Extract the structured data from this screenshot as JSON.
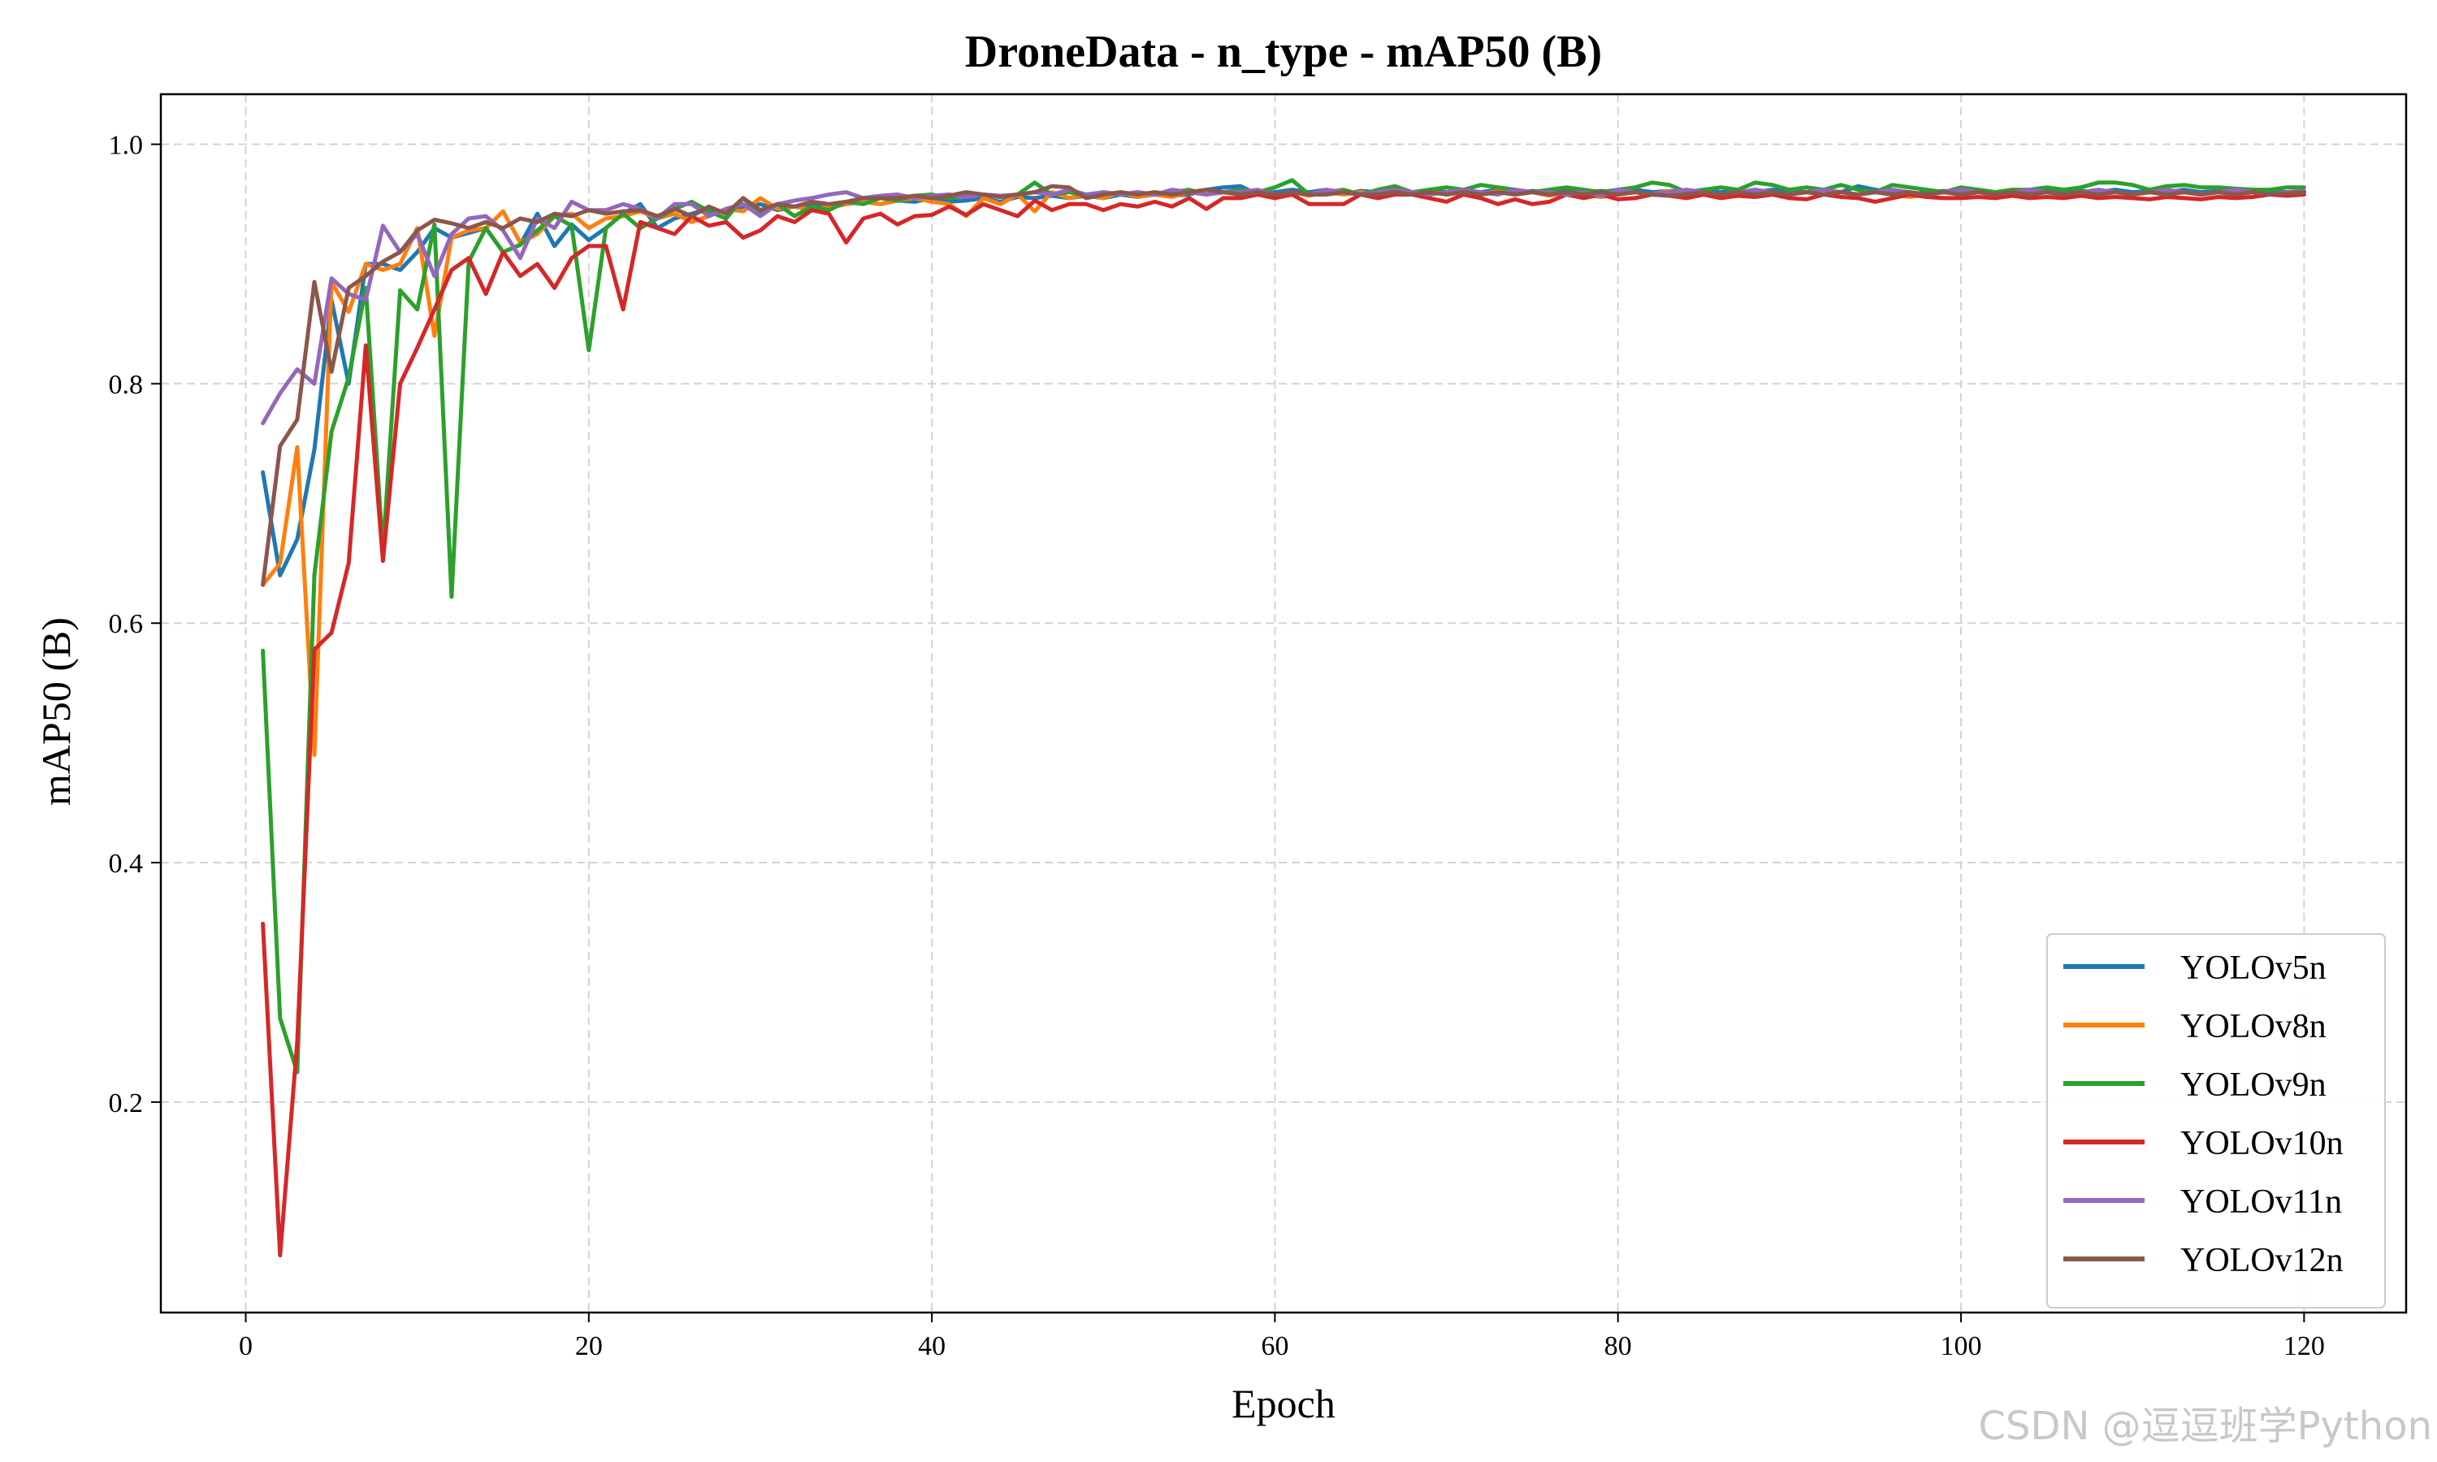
{
  "watermark": "CSDN @逗逗班学Python",
  "chart_data": {
    "type": "line",
    "title": "DroneData - n_type - mAP50 (B)",
    "xlabel": "Epoch",
    "ylabel": "mAP50 (B)",
    "xlim": [
      -4.95,
      125.95
    ],
    "ylim": [
      0.0242,
      1.0418
    ],
    "xticks": [
      0,
      20,
      40,
      60,
      80,
      100,
      120
    ],
    "yticks": [
      0.2,
      0.4,
      0.6,
      0.8,
      1.0
    ],
    "xtick_labels": [
      "0",
      "20",
      "40",
      "60",
      "80",
      "100",
      "120"
    ],
    "ytick_labels": [
      "0.2",
      "0.4",
      "0.6",
      "0.8",
      "1.0"
    ],
    "grid": true,
    "legend_position": "bottom-right",
    "series": [
      {
        "name": "YOLOv5n",
        "color": "#1f77b4",
        "values": [
          0.726,
          0.64,
          0.67,
          0.745,
          0.87,
          0.8,
          0.9,
          0.9,
          0.895,
          0.91,
          0.93,
          0.922,
          0.926,
          0.93,
          0.91,
          0.916,
          0.942,
          0.915,
          0.933,
          0.92,
          0.93,
          0.942,
          0.95,
          0.93,
          0.938,
          0.942,
          0.946,
          0.943,
          0.948,
          0.95,
          0.945,
          0.948,
          0.95,
          0.947,
          0.95,
          0.952,
          0.95,
          0.953,
          0.952,
          0.955,
          0.952,
          0.953,
          0.955,
          0.952,
          0.956,
          0.955,
          0.957,
          0.955,
          0.957,
          0.955,
          0.958,
          0.956,
          0.958,
          0.957,
          0.958,
          0.962,
          0.964,
          0.965,
          0.958,
          0.96,
          0.962,
          0.96,
          0.962,
          0.958,
          0.961,
          0.96,
          0.962,
          0.958,
          0.962,
          0.96,
          0.961,
          0.96,
          0.962,
          0.959,
          0.961,
          0.96,
          0.962,
          0.96,
          0.961,
          0.96,
          0.962,
          0.96,
          0.961,
          0.96,
          0.962,
          0.96,
          0.961,
          0.96,
          0.962,
          0.961,
          0.96,
          0.962,
          0.96,
          0.965,
          0.962,
          0.96,
          0.958,
          0.96,
          0.961,
          0.96,
          0.962,
          0.96,
          0.961,
          0.96,
          0.962,
          0.96,
          0.961,
          0.96,
          0.962,
          0.96,
          0.961,
          0.96,
          0.962,
          0.96,
          0.961,
          0.96,
          0.962,
          0.961,
          0.96,
          0.96
        ]
      },
      {
        "name": "YOLOv8n",
        "color": "#ff7f0e",
        "values": [
          0.632,
          0.65,
          0.747,
          0.49,
          0.885,
          0.86,
          0.9,
          0.895,
          0.9,
          0.93,
          0.84,
          0.922,
          0.928,
          0.93,
          0.944,
          0.918,
          0.925,
          0.94,
          0.942,
          0.93,
          0.938,
          0.94,
          0.944,
          0.938,
          0.942,
          0.935,
          0.94,
          0.946,
          0.944,
          0.955,
          0.946,
          0.948,
          0.945,
          0.948,
          0.95,
          0.952,
          0.95,
          0.953,
          0.955,
          0.952,
          0.95,
          0.94,
          0.955,
          0.95,
          0.958,
          0.944,
          0.96,
          0.955,
          0.958,
          0.955,
          0.96,
          0.956,
          0.958,
          0.956,
          0.96,
          0.958,
          0.96,
          0.958,
          0.96,
          0.958,
          0.96,
          0.957,
          0.96,
          0.958,
          0.96,
          0.958,
          0.96,
          0.958,
          0.961,
          0.958,
          0.96,
          0.958,
          0.961,
          0.958,
          0.96,
          0.957,
          0.96,
          0.958,
          0.956,
          0.958,
          0.96,
          0.958,
          0.961,
          0.958,
          0.96,
          0.958,
          0.96,
          0.958,
          0.96,
          0.958,
          0.96,
          0.958,
          0.96,
          0.958,
          0.96,
          0.958,
          0.956,
          0.958,
          0.96,
          0.958,
          0.96,
          0.958,
          0.96,
          0.958,
          0.96,
          0.958,
          0.96,
          0.958,
          0.96,
          0.958,
          0.96,
          0.958,
          0.96,
          0.958,
          0.96,
          0.958,
          0.96,
          0.958,
          0.96,
          0.96
        ]
      },
      {
        "name": "YOLOv9n",
        "color": "#2ca02c",
        "values": [
          0.577,
          0.27,
          0.225,
          0.64,
          0.76,
          0.805,
          0.88,
          0.66,
          0.878,
          0.862,
          0.933,
          0.622,
          0.902,
          0.93,
          0.91,
          0.916,
          0.928,
          0.94,
          0.932,
          0.828,
          0.93,
          0.942,
          0.93,
          0.938,
          0.946,
          0.952,
          0.944,
          0.938,
          0.955,
          0.942,
          0.95,
          0.94,
          0.948,
          0.945,
          0.952,
          0.95,
          0.955,
          0.953,
          0.957,
          0.958,
          0.955,
          0.957,
          0.958,
          0.956,
          0.958,
          0.968,
          0.958,
          0.96,
          0.957,
          0.96,
          0.958,
          0.96,
          0.958,
          0.96,
          0.962,
          0.958,
          0.96,
          0.962,
          0.96,
          0.964,
          0.97,
          0.958,
          0.96,
          0.962,
          0.958,
          0.962,
          0.965,
          0.96,
          0.962,
          0.964,
          0.962,
          0.966,
          0.964,
          0.962,
          0.96,
          0.962,
          0.964,
          0.962,
          0.96,
          0.962,
          0.964,
          0.968,
          0.966,
          0.96,
          0.962,
          0.964,
          0.962,
          0.968,
          0.966,
          0.962,
          0.964,
          0.962,
          0.966,
          0.962,
          0.96,
          0.966,
          0.964,
          0.962,
          0.96,
          0.964,
          0.962,
          0.96,
          0.962,
          0.962,
          0.964,
          0.962,
          0.964,
          0.968,
          0.968,
          0.966,
          0.962,
          0.965,
          0.966,
          0.964,
          0.964,
          0.963,
          0.962,
          0.962,
          0.964,
          0.964
        ]
      },
      {
        "name": "YOLOv10n",
        "color": "#d62728",
        "values": [
          0.349,
          0.072,
          0.25,
          0.578,
          0.592,
          0.65,
          0.832,
          0.652,
          0.8,
          0.83,
          0.862,
          0.895,
          0.905,
          0.875,
          0.91,
          0.89,
          0.9,
          0.88,
          0.905,
          0.915,
          0.915,
          0.862,
          0.935,
          0.93,
          0.925,
          0.94,
          0.932,
          0.935,
          0.922,
          0.928,
          0.94,
          0.935,
          0.945,
          0.942,
          0.918,
          0.938,
          0.942,
          0.933,
          0.94,
          0.941,
          0.948,
          0.941,
          0.95,
          0.945,
          0.94,
          0.953,
          0.945,
          0.95,
          0.95,
          0.945,
          0.95,
          0.948,
          0.952,
          0.948,
          0.955,
          0.946,
          0.955,
          0.955,
          0.958,
          0.955,
          0.958,
          0.95,
          0.95,
          0.95,
          0.958,
          0.955,
          0.958,
          0.958,
          0.955,
          0.952,
          0.958,
          0.955,
          0.95,
          0.954,
          0.95,
          0.952,
          0.958,
          0.955,
          0.958,
          0.954,
          0.955,
          0.958,
          0.957,
          0.955,
          0.958,
          0.955,
          0.957,
          0.956,
          0.958,
          0.955,
          0.954,
          0.958,
          0.956,
          0.955,
          0.952,
          0.955,
          0.958,
          0.956,
          0.955,
          0.955,
          0.956,
          0.955,
          0.957,
          0.955,
          0.956,
          0.955,
          0.957,
          0.955,
          0.956,
          0.955,
          0.954,
          0.956,
          0.955,
          0.954,
          0.956,
          0.955,
          0.956,
          0.958,
          0.957,
          0.958
        ]
      },
      {
        "name": "YOLOv11n",
        "color": "#9467bd",
        "values": [
          0.767,
          0.792,
          0.812,
          0.8,
          0.888,
          0.875,
          0.87,
          0.932,
          0.91,
          0.925,
          0.89,
          0.925,
          0.938,
          0.94,
          0.928,
          0.905,
          0.938,
          0.93,
          0.952,
          0.945,
          0.945,
          0.95,
          0.946,
          0.938,
          0.95,
          0.95,
          0.94,
          0.946,
          0.95,
          0.94,
          0.95,
          0.953,
          0.955,
          0.958,
          0.96,
          0.955,
          0.957,
          0.958,
          0.955,
          0.957,
          0.958,
          0.956,
          0.958,
          0.957,
          0.958,
          0.96,
          0.958,
          0.962,
          0.958,
          0.96,
          0.958,
          0.96,
          0.958,
          0.962,
          0.96,
          0.958,
          0.96,
          0.96,
          0.962,
          0.958,
          0.96,
          0.958,
          0.962,
          0.96,
          0.958,
          0.96,
          0.962,
          0.96,
          0.958,
          0.96,
          0.962,
          0.96,
          0.958,
          0.962,
          0.96,
          0.96,
          0.958,
          0.96,
          0.957,
          0.962,
          0.96,
          0.958,
          0.96,
          0.962,
          0.96,
          0.958,
          0.96,
          0.962,
          0.96,
          0.958,
          0.96,
          0.962,
          0.96,
          0.958,
          0.96,
          0.962,
          0.96,
          0.958,
          0.96,
          0.962,
          0.96,
          0.958,
          0.96,
          0.962,
          0.96,
          0.958,
          0.96,
          0.962,
          0.96,
          0.958,
          0.96,
          0.962,
          0.96,
          0.958,
          0.96,
          0.962,
          0.96,
          0.958,
          0.96,
          0.961
        ]
      },
      {
        "name": "YOLOv12n",
        "color": "#8c564b",
        "values": [
          0.632,
          0.748,
          0.77,
          0.885,
          0.81,
          0.88,
          0.89,
          0.902,
          0.91,
          0.928,
          0.937,
          0.934,
          0.93,
          0.935,
          0.93,
          0.938,
          0.935,
          0.942,
          0.94,
          0.945,
          0.942,
          0.944,
          0.945,
          0.94,
          0.946,
          0.94,
          0.948,
          0.942,
          0.955,
          0.945,
          0.95,
          0.948,
          0.952,
          0.95,
          0.952,
          0.955,
          0.955,
          0.955,
          0.957,
          0.955,
          0.957,
          0.96,
          0.958,
          0.956,
          0.958,
          0.96,
          0.965,
          0.964,
          0.955,
          0.958,
          0.96,
          0.958,
          0.96,
          0.958,
          0.96,
          0.962,
          0.96,
          0.958,
          0.96,
          0.958,
          0.96,
          0.958,
          0.958,
          0.96,
          0.958,
          0.958,
          0.96,
          0.958,
          0.96,
          0.958,
          0.96,
          0.958,
          0.96,
          0.958,
          0.96,
          0.958,
          0.96,
          0.958,
          0.96,
          0.958,
          0.96,
          0.958,
          0.957,
          0.958,
          0.96,
          0.958,
          0.96,
          0.958,
          0.96,
          0.958,
          0.96,
          0.958,
          0.96,
          0.958,
          0.96,
          0.958,
          0.96,
          0.958,
          0.96,
          0.958,
          0.96,
          0.958,
          0.96,
          0.958,
          0.96,
          0.958,
          0.96,
          0.958,
          0.96,
          0.958,
          0.96,
          0.958,
          0.96,
          0.958,
          0.96,
          0.958,
          0.96,
          0.958,
          0.959,
          0.96
        ]
      }
    ]
  }
}
